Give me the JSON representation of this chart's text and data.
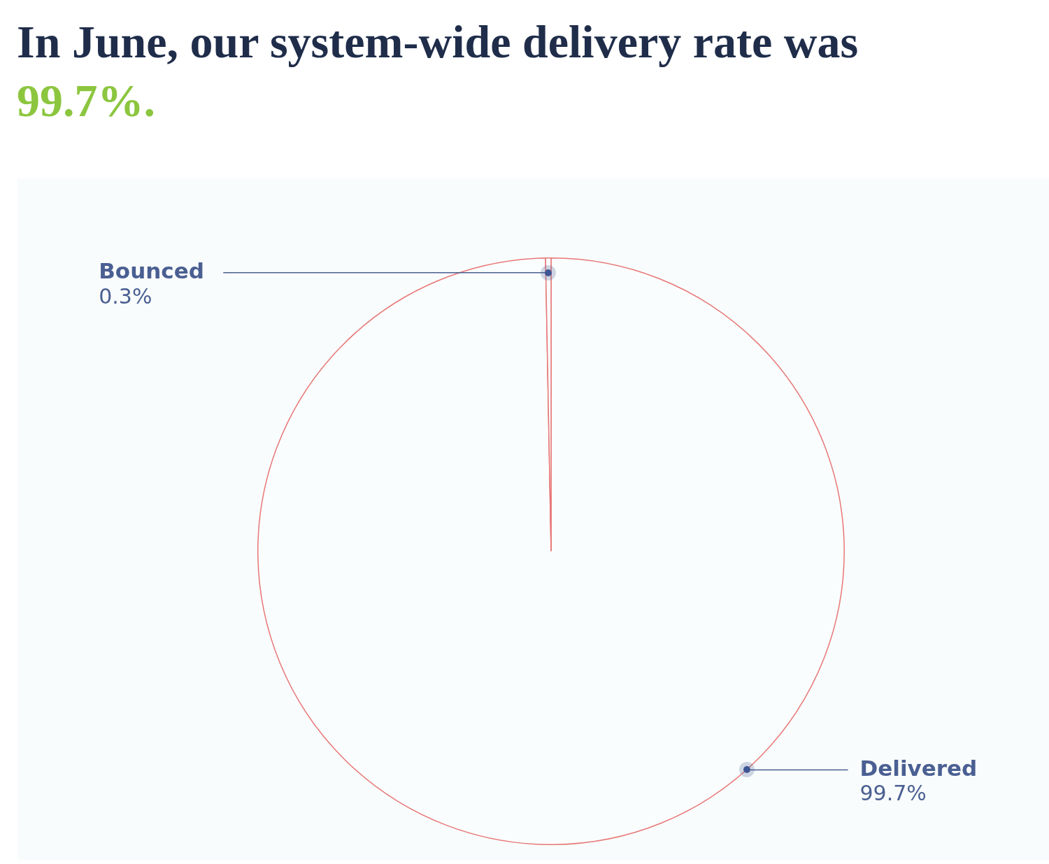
{
  "chart_data": {
    "type": "pie",
    "title": "In June, our system-wide delivery rate was",
    "subtitle": "99.7%.",
    "categories": [
      "Delivered",
      "Bounced"
    ],
    "values": [
      99.7,
      0.3
    ],
    "colors": [
      "#fafdfd",
      "#fafdfd"
    ],
    "value_labels": [
      "99.7%",
      "0.3%"
    ],
    "legend": false
  }
}
